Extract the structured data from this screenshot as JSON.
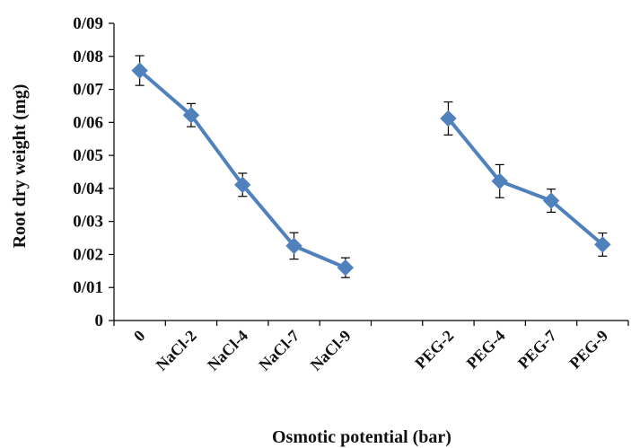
{
  "chart_data": {
    "type": "line",
    "xlabel": "Osmotic potential (bar)",
    "ylabel": "Root dry weight (mg)",
    "ylim": [
      0,
      0.09
    ],
    "yticks": [
      "0",
      "0/01",
      "0/02",
      "0/03",
      "0/04",
      "0/05",
      "0/06",
      "0/07",
      "0/08",
      "0/09"
    ],
    "grid": false,
    "legend": "none",
    "categories": [
      "0",
      "NaCl-2",
      "NaCl-4",
      "NaCl-7",
      "NaCl-9",
      "",
      "PEG-2",
      "PEG-4",
      "PEG-7",
      "PEG-9"
    ],
    "series": [
      {
        "values": [
          0.0757,
          0.0622,
          0.0411,
          0.0226,
          0.016,
          null,
          0.0612,
          0.0422,
          0.0363,
          0.023
        ],
        "error": [
          0.0045,
          0.0035,
          0.0035,
          0.004,
          0.003,
          null,
          0.005,
          0.005,
          0.0035,
          0.0035
        ]
      }
    ],
    "colors": {
      "line": "#4f81bd",
      "marker": "#4f81bd",
      "axis": "#000000"
    }
  }
}
